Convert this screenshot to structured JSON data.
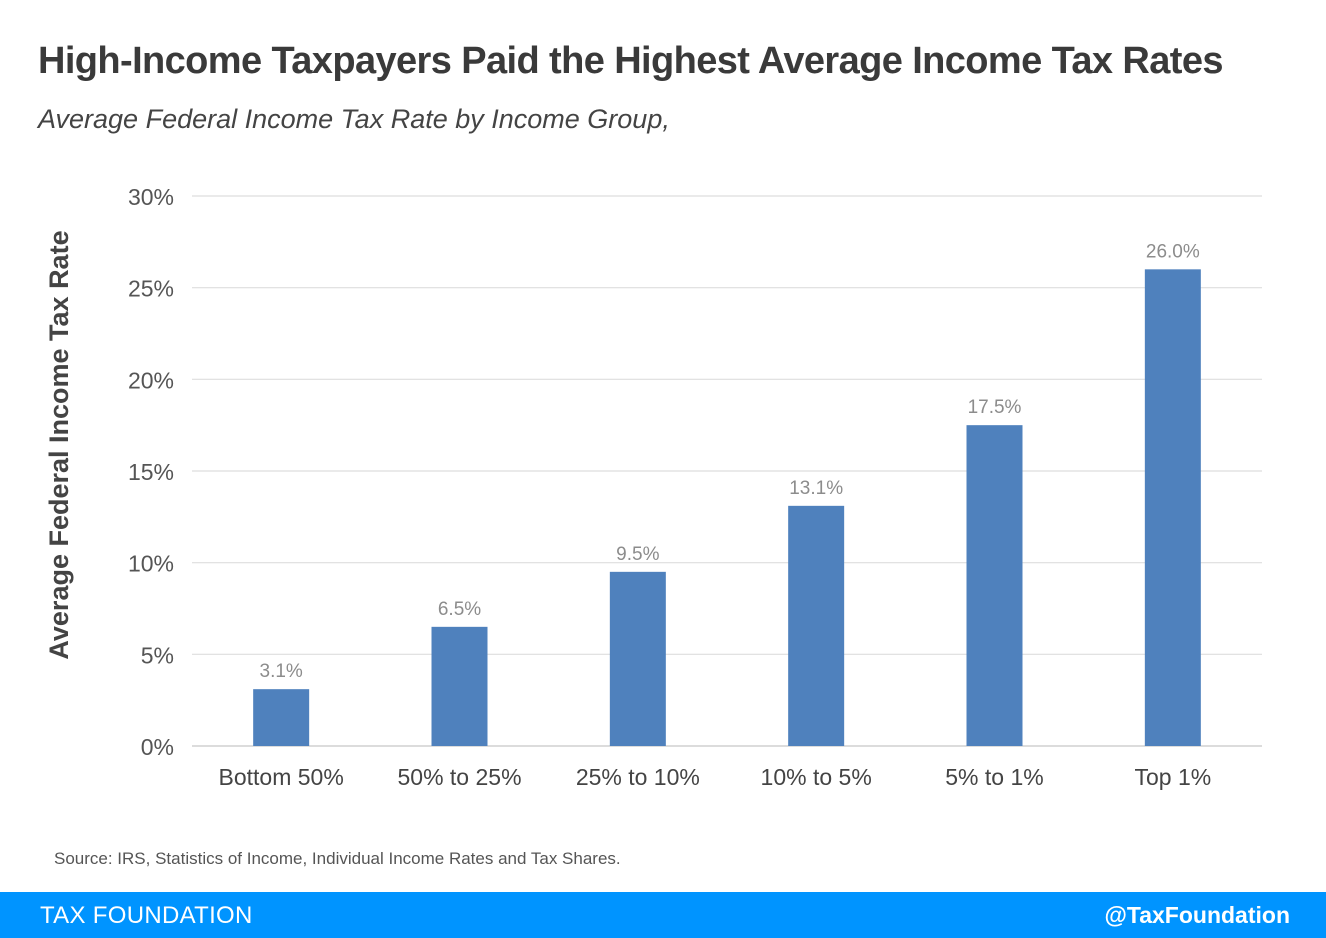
{
  "header": {
    "title": "High-Income Taxpayers Paid the Highest Average Income Tax Rates",
    "subtitle": "Average Federal Income Tax Rate by Income Group,"
  },
  "chart_data": {
    "type": "bar",
    "ylabel": "Average Federal Income Tax Rate",
    "xlabel": "",
    "categories": [
      "Bottom 50%",
      "50% to 25%",
      "25% to 10%",
      "10% to 5%",
      "5% to 1%",
      "Top 1%"
    ],
    "values": [
      3.1,
      6.5,
      9.5,
      13.1,
      17.5,
      26.0
    ],
    "value_labels": [
      "3.1%",
      "6.5%",
      "9.5%",
      "13.1%",
      "17.5%",
      "26.0%"
    ],
    "ylim": [
      0,
      30
    ],
    "yticks": [
      0,
      5,
      10,
      15,
      20,
      25,
      30
    ],
    "ytick_labels": [
      "0%",
      "5%",
      "10%",
      "15%",
      "20%",
      "25%",
      "30%"
    ],
    "grid": true,
    "legend": "none",
    "bar_color": "#4f81bd"
  },
  "source": "Source: IRS, Statistics of Income, Individual Income Rates and Tax Shares.",
  "footer": {
    "brand": "TAX FOUNDATION",
    "handle": "@TaxFoundation",
    "color": "#0094ff"
  }
}
